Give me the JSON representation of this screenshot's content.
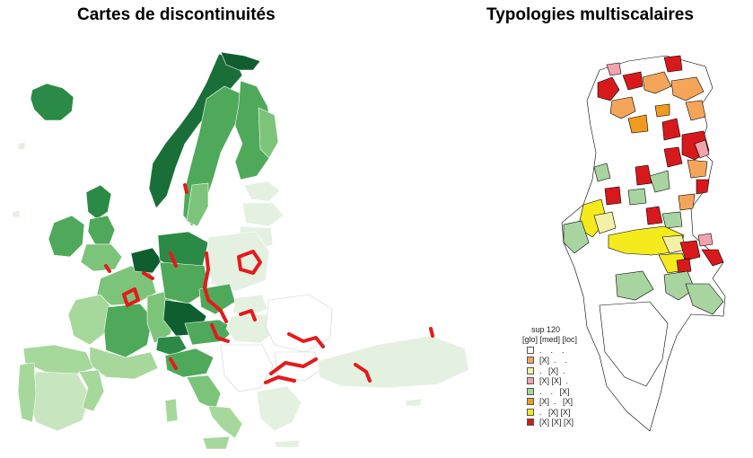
{
  "titles": {
    "left": "Cartes de discontinuités",
    "right": "Typologies multiscalaires"
  },
  "colors": {
    "greens": [
      "#e4f1e0",
      "#c7e6c0",
      "#a6d89c",
      "#7cc47a",
      "#4fa95a",
      "#2b8a45",
      "#0f5e30"
    ],
    "discontinuity_line": "#e41a1c",
    "tunisia_border": "#000000"
  },
  "legend": {
    "heading": "sup 120",
    "subheading": "[glo] [med] [loc]",
    "items": [
      {
        "label": ".    .    .",
        "color": "#ffffff"
      },
      {
        "label": "[X]  .    .",
        "color": "#f4a55a"
      },
      {
        "label": ".   [X]  .",
        "color": "#f5f0a8"
      },
      {
        "label": "[X] [X]  .",
        "color": "#f2a3ae"
      },
      {
        "label": ".    .   [X]",
        "color": "#a8d4a0"
      },
      {
        "label": "[X]  .   [X]",
        "color": "#f09a1e"
      },
      {
        "label": ".   [X] [X]",
        "color": "#f4ea1c"
      },
      {
        "label": "[X] [X] [X]",
        "color": "#d7191c"
      }
    ]
  }
}
